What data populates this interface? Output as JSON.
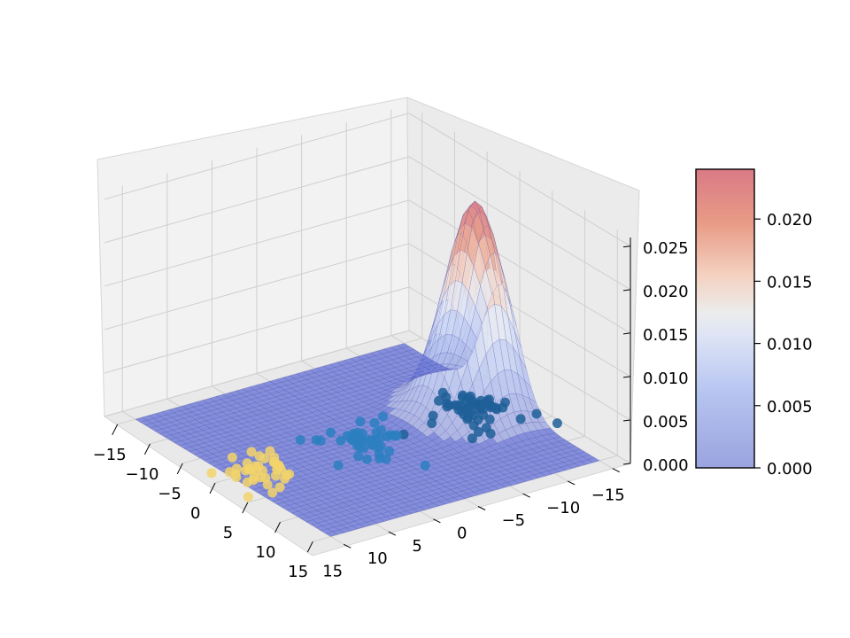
{
  "chart_data": {
    "type": "surface3d",
    "title": "",
    "surface": {
      "kind": "gaussian",
      "peak": {
        "x": -12,
        "y": 0,
        "z": 0.024
      },
      "sigma": 2.8,
      "colormap": "coolwarm"
    },
    "scatter": [
      {
        "center": {
          "x": -12,
          "y": 0
        },
        "count": 55,
        "color": "#1f5f98"
      },
      {
        "center": {
          "x": 0,
          "y": 0
        },
        "count": 45,
        "color": "#2c7fbf"
      },
      {
        "center": {
          "x": 12,
          "y": 0
        },
        "count": 40,
        "color": "#f2d36b"
      }
    ],
    "axes": {
      "x": {
        "ticks": [
          -15,
          -10,
          -5,
          0,
          5,
          10,
          15
        ],
        "labels": [
          "−15",
          "−10",
          "−5",
          "0",
          "5",
          "10",
          "15"
        ],
        "range": [
          -17,
          17
        ]
      },
      "y": {
        "ticks": [
          -15,
          -10,
          -5,
          0,
          5,
          10,
          15
        ],
        "labels": [
          "−15",
          "−10",
          "−5",
          "0",
          "5",
          "10",
          "15"
        ],
        "range": [
          -17,
          17
        ]
      },
      "z": {
        "ticks": [
          0.0,
          0.005,
          0.01,
          0.015,
          0.02,
          0.025
        ],
        "labels": [
          "0.000",
          "0.005",
          "0.010",
          "0.015",
          "0.020",
          "0.025"
        ],
        "range": [
          0,
          0.026
        ]
      }
    },
    "colorbar": {
      "range": [
        0,
        0.024
      ],
      "ticks": [
        0.0,
        0.005,
        0.01,
        0.015,
        0.02
      ],
      "labels": [
        "0.000",
        "0.005",
        "0.010",
        "0.015",
        "0.020"
      ]
    },
    "grid": true
  }
}
